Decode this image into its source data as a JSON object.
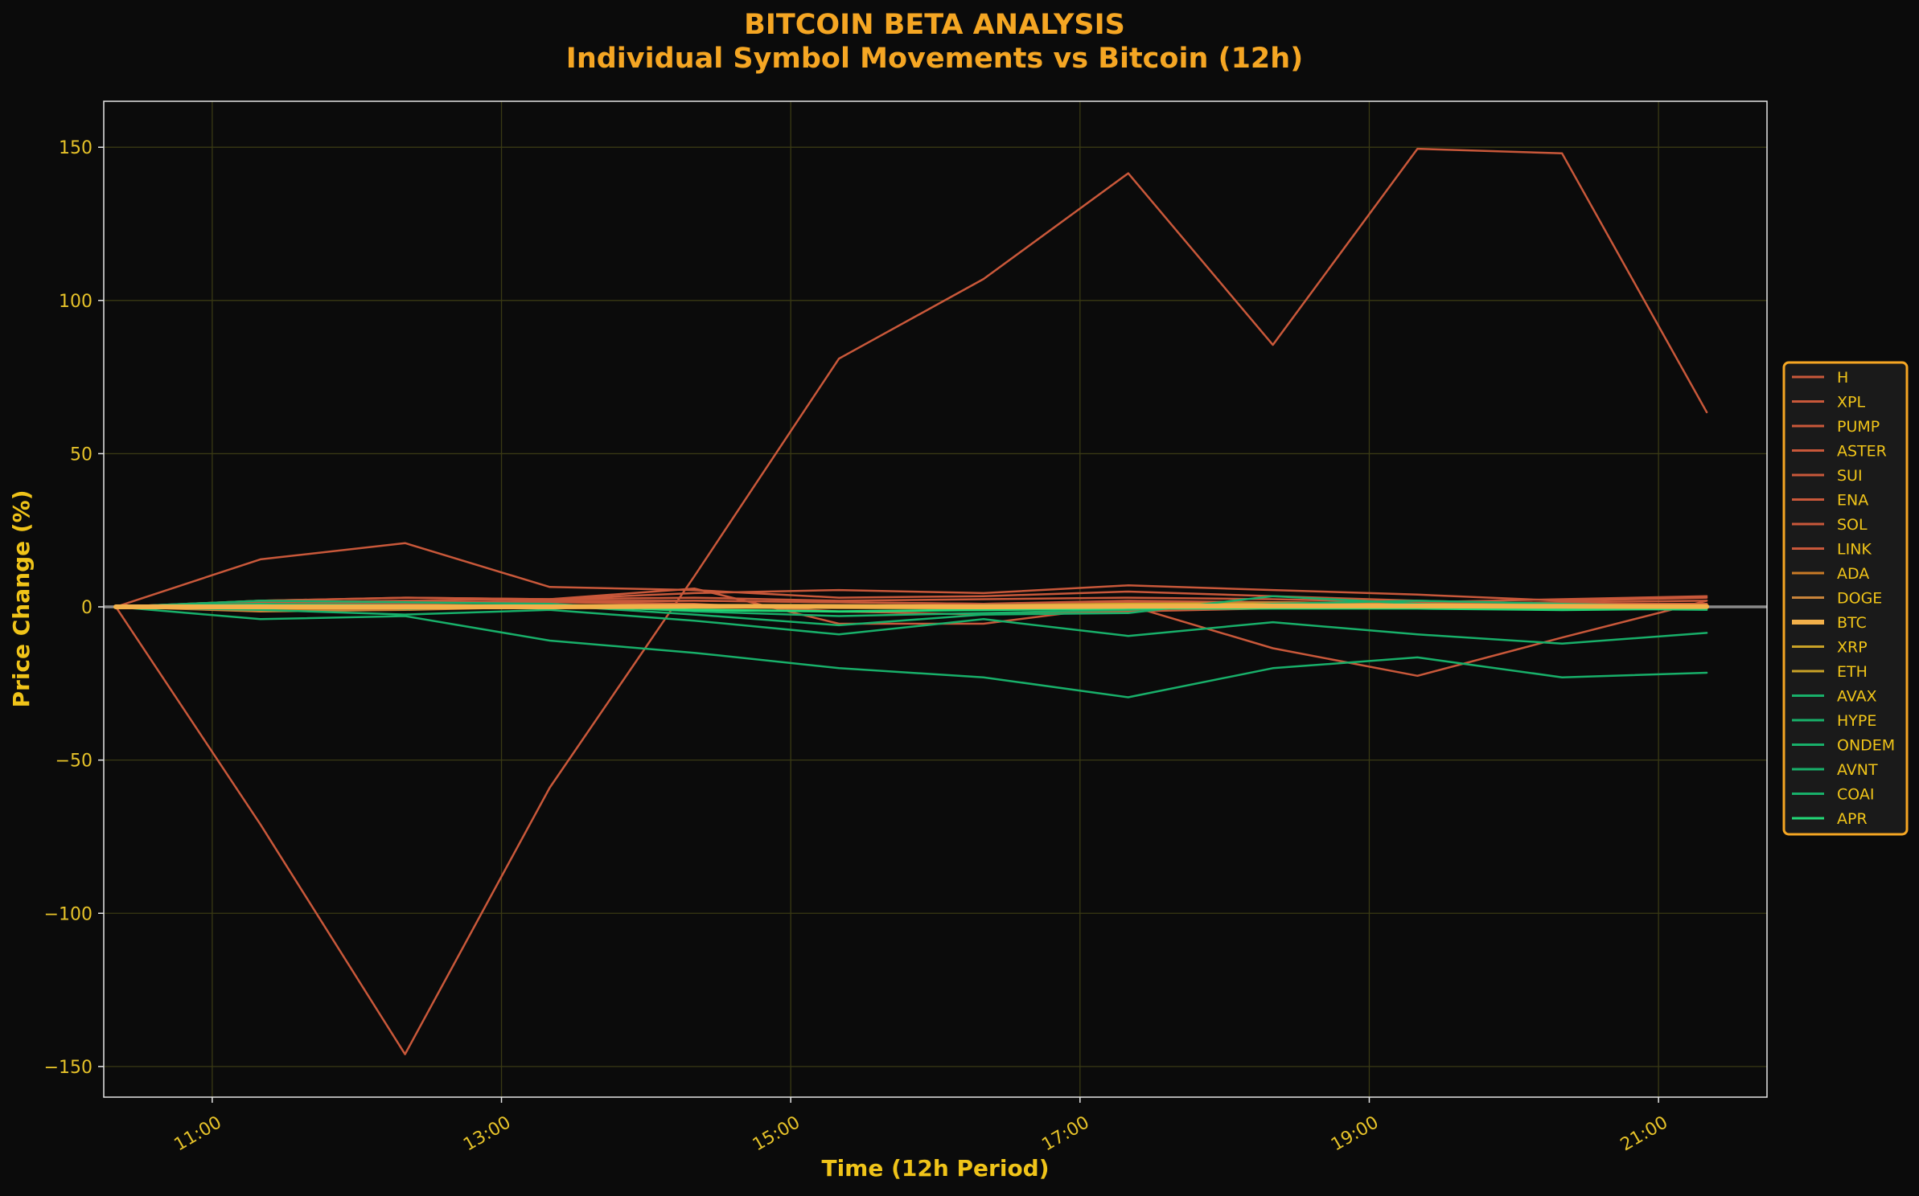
{
  "chart_data": {
    "type": "line",
    "title_line1": "BITCOIN BETA ANALYSIS",
    "title_line2": "Individual Symbol Movements vs Bitcoin (12h)",
    "xlabel": "Time (12h Period)",
    "ylabel": "Price Change (%)",
    "ylim": [
      -160,
      165
    ],
    "xlim": [
      "10:15",
      "21:45"
    ],
    "y_ticks": [
      150,
      100,
      50,
      0,
      -50,
      -100,
      -150
    ],
    "y_tick_labels": [
      "150",
      "100",
      "50",
      "0",
      "−50",
      "−100",
      "−150"
    ],
    "x_ticks": [
      "11:00",
      "13:00",
      "15:00",
      "17:00",
      "19:00",
      "21:00"
    ],
    "x": [
      "10:20",
      "11:20",
      "12:20",
      "13:20",
      "14:20",
      "15:20",
      "16:20",
      "17:20",
      "18:20",
      "19:20",
      "20:20",
      "21:20"
    ],
    "grid": true,
    "zero_line": true,
    "legend_position": "right",
    "colors": {
      "background": "#0b0b0b",
      "plot_background": "#0b0b0b",
      "title": "#f5a623",
      "axis_label": "#f0c419",
      "tick_label": "#e6c229",
      "grid": "#3a3a14",
      "zero_line": "#8a8a8a",
      "legend_border": "#f5a623",
      "legend_bg": "#1a1a1a"
    },
    "series": [
      {
        "name": "H",
        "color": "#c9583a",
        "width": 2.5,
        "values": [
          0,
          15.5,
          20.8,
          6.5,
          5.5,
          3.0,
          3.5,
          5.0,
          3.5,
          2.0,
          1.0,
          1.0
        ]
      },
      {
        "name": "XPL",
        "color": "#c9583a",
        "width": 2.5,
        "values": [
          0,
          -71,
          -146,
          -59,
          10,
          81,
          107,
          141.5,
          85.5,
          149.5,
          148,
          63.5
        ]
      },
      {
        "name": "PUMP",
        "color": "#c9583a",
        "width": 2.5,
        "values": [
          0,
          2.0,
          3.0,
          2.5,
          3.0,
          2.0,
          2.5,
          3.0,
          2.5,
          1.5,
          2.5,
          3.5
        ]
      },
      {
        "name": "ASTER",
        "color": "#c9583a",
        "width": 2.5,
        "values": [
          0,
          1.5,
          2.0,
          2.5,
          6.0,
          -5.5,
          -5.5,
          0.5,
          -13.5,
          -22.5,
          -10,
          2.0
        ]
      },
      {
        "name": "SUI",
        "color": "#c9583a",
        "width": 2.5,
        "values": [
          0,
          1.5,
          1.0,
          2.0,
          2.0,
          1.5,
          1.0,
          2.0,
          1.5,
          1.0,
          1.5,
          2.0
        ]
      },
      {
        "name": "ENA",
        "color": "#c9583a",
        "width": 2.5,
        "values": [
          0,
          2.0,
          3.0,
          2.5,
          4.5,
          5.5,
          4.5,
          7.0,
          5.5,
          4.0,
          2.0,
          3.0
        ]
      },
      {
        "name": "SOL",
        "color": "#c9583a",
        "width": 2.5,
        "values": [
          0,
          1.0,
          1.5,
          1.5,
          2.0,
          1.5,
          1.0,
          1.5,
          1.5,
          1.0,
          1.0,
          1.0
        ]
      },
      {
        "name": "LINK",
        "color": "#c9583a",
        "width": 2.5,
        "values": [
          0,
          0.5,
          1.0,
          1.5,
          1.0,
          -1.5,
          -2.5,
          -1.5,
          -0.5,
          0.5,
          0.5,
          0.0
        ]
      },
      {
        "name": "ADA",
        "color": "#c97a26",
        "width": 2.5,
        "values": [
          0,
          -1.0,
          -0.5,
          0.5,
          0.5,
          0.0,
          0.5,
          0.5,
          1.0,
          1.0,
          0.5,
          0.5
        ]
      },
      {
        "name": "DOGE",
        "color": "#c9843a",
        "width": 2.5,
        "values": [
          0,
          -1.5,
          -1.0,
          0.0,
          0.5,
          0.0,
          0.5,
          1.0,
          1.5,
          1.0,
          0.5,
          0.5
        ]
      },
      {
        "name": "BTC",
        "color": "#f2b04a",
        "width": 6,
        "values": [
          0,
          0.0,
          0.0,
          0.0,
          0.2,
          0.1,
          0.0,
          0.2,
          0.3,
          0.3,
          0.2,
          0.1
        ]
      },
      {
        "name": "XRP",
        "color": "#c9a227",
        "width": 2.5,
        "values": [
          0,
          -0.5,
          0.0,
          0.5,
          0.5,
          0.0,
          0.5,
          0.5,
          0.5,
          0.5,
          0.0,
          0.0
        ]
      },
      {
        "name": "ETH",
        "color": "#c9a227",
        "width": 2.5,
        "values": [
          0,
          0.0,
          0.5,
          0.5,
          0.5,
          0.5,
          0.5,
          1.0,
          1.0,
          0.5,
          0.5,
          0.5
        ]
      },
      {
        "name": "AVAX",
        "color": "#18b06a",
        "width": 2.5,
        "values": [
          0,
          -4.0,
          -3.0,
          -11,
          -15,
          -20,
          -23,
          -29.5,
          -20,
          -16.5,
          -23,
          -21.5
        ]
      },
      {
        "name": "HYPE",
        "color": "#18b06a",
        "width": 2.5,
        "values": [
          0,
          -1.0,
          -2.5,
          -1.0,
          -4.5,
          -9.0,
          -4.0,
          -9.5,
          -5.0,
          -9.0,
          -12,
          -8.5
        ]
      },
      {
        "name": "ONDEM",
        "color": "#18b06a",
        "width": 2.5,
        "values": [
          0,
          1.0,
          0.5,
          0.5,
          -2.5,
          -6.0,
          -2.5,
          -2.0,
          3.5,
          1.0,
          -0.5,
          -1.0
        ]
      },
      {
        "name": "AVNT",
        "color": "#18b06a",
        "width": 2.5,
        "values": [
          0,
          2.0,
          1.5,
          1.0,
          -1.5,
          -3.0,
          -2.0,
          -1.0,
          1.0,
          2.0,
          1.0,
          0.0
        ]
      },
      {
        "name": "COAI",
        "color": "#18b06a",
        "width": 2.5,
        "values": [
          0,
          0.5,
          -0.5,
          0.0,
          0.5,
          0.0,
          0.5,
          0.5,
          0.5,
          0.5,
          0.0,
          0.0
        ]
      },
      {
        "name": "APR",
        "color": "#22d876",
        "width": 3,
        "values": [
          0,
          0.5,
          -0.5,
          0.0,
          -1.0,
          -1.5,
          -1.0,
          -0.5,
          -0.5,
          -0.5,
          -1.0,
          -0.5
        ]
      }
    ]
  }
}
